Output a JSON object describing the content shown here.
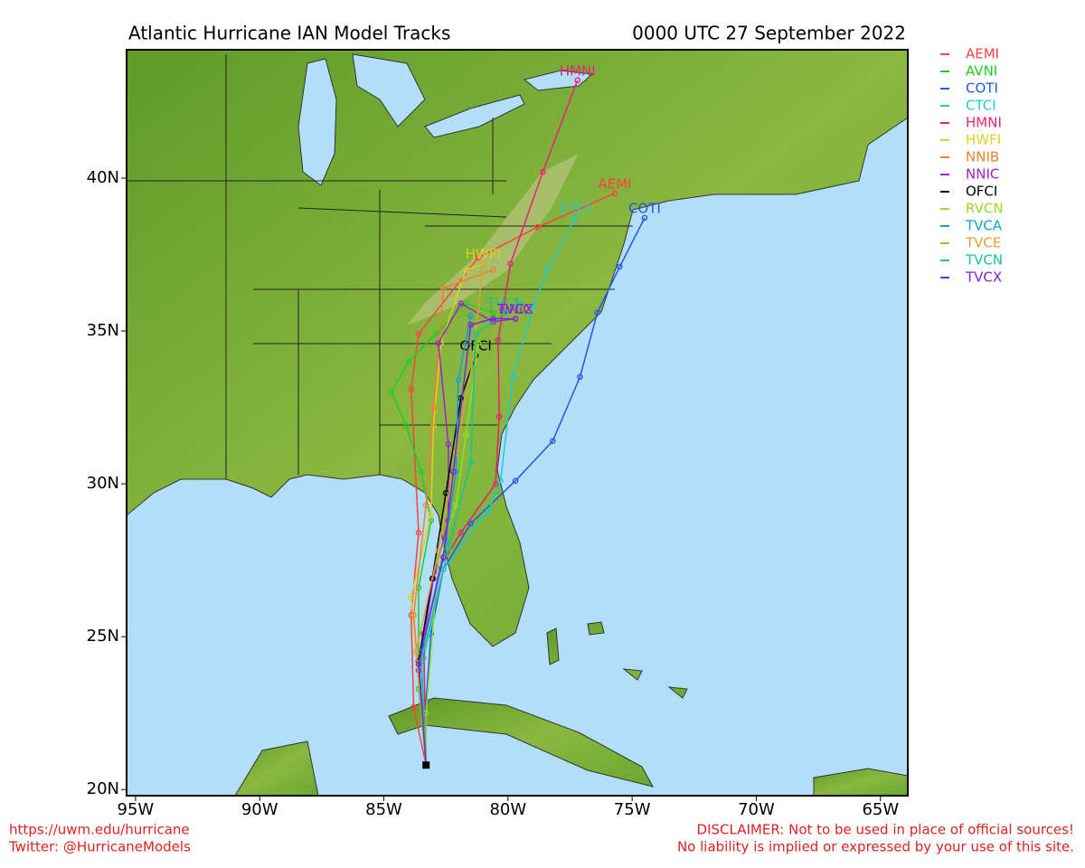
{
  "chart_data": {
    "type": "map",
    "title": "Atlantic Hurricane IAN Model Tracks",
    "subtitle": "0000 UTC 27 September 2022",
    "xlim": [
      -95.36,
      -63.9
    ],
    "ylim": [
      19.8,
      44.2
    ],
    "xticks": [
      {
        "value": -95,
        "label": "95W"
      },
      {
        "value": -90,
        "label": "90W"
      },
      {
        "value": -85,
        "label": "85W"
      },
      {
        "value": -80,
        "label": "80W"
      },
      {
        "value": -75,
        "label": "75W"
      },
      {
        "value": -70,
        "label": "70W"
      },
      {
        "value": -65,
        "label": "65W"
      }
    ],
    "yticks": [
      {
        "value": 20,
        "label": "20N"
      },
      {
        "value": 25,
        "label": "25N"
      },
      {
        "value": 30,
        "label": "30N"
      },
      {
        "value": 35,
        "label": "35N"
      },
      {
        "value": 40,
        "label": "40N"
      }
    ],
    "start": {
      "x": -83.3,
      "y": 20.8
    },
    "series": [
      {
        "name": "AEMI",
        "color": "#ff4040",
        "labeled": true,
        "x": [
          -83.3,
          -83.8,
          -83.9,
          -83.6,
          -83.9,
          -83.6,
          -81.2,
          -78.8,
          -75.7
        ],
        "y": [
          20.8,
          22.7,
          25.7,
          28.4,
          33.1,
          34.9,
          37.4,
          38.4,
          39.5
        ]
      },
      {
        "name": "AVNI",
        "color": "#22cc22",
        "labeled": false,
        "x": [
          -83.3,
          -83.6,
          -83.6,
          -83.1,
          -83.5,
          -84.1,
          -84.7,
          -84.0,
          -82.9,
          -81.7,
          -80.6
        ],
        "y": [
          20.8,
          23.3,
          26.6,
          28.8,
          30.4,
          31.9,
          33.0,
          34.0,
          34.9,
          35.9,
          35.6
        ]
      },
      {
        "name": "COTI",
        "color": "#2255ee",
        "labeled": true,
        "x": [
          -83.3,
          -83.3,
          -83.1,
          -82.6,
          -81.5,
          -79.7,
          -78.2,
          -77.1,
          -76.4,
          -75.5,
          -74.5
        ],
        "y": [
          20.8,
          22.9,
          25.1,
          27.2,
          28.7,
          30.1,
          31.4,
          33.5,
          35.6,
          37.1,
          38.7
        ]
      },
      {
        "name": "CTCI",
        "color": "#20c8d0",
        "labeled": true,
        "x": [
          -83.3,
          -83.4,
          -82.6,
          -80.8,
          -80.3,
          -79.8,
          -79.0,
          -78.4,
          -77.3
        ],
        "y": [
          20.8,
          24.3,
          27.2,
          29.1,
          30.1,
          33.5,
          35.8,
          37.0,
          38.7
        ]
      },
      {
        "name": "HMNI",
        "color": "#e8207a",
        "labeled": true,
        "x": [
          -83.3,
          -83.4,
          -83.05,
          -81.9,
          -80.5,
          -80.35,
          -80.4,
          -79.9,
          -78.6,
          -77.2
        ],
        "y": [
          20.8,
          25.1,
          26.9,
          28.4,
          30.0,
          32.2,
          34.7,
          37.2,
          40.2,
          43.2
        ]
      },
      {
        "name": "HWFI",
        "color": "#e0d020",
        "labeled": true,
        "x": [
          -83.3,
          -83.9,
          -83.1,
          -83.0,
          -82.7,
          -81.7,
          -81.0
        ],
        "y": [
          20.8,
          26.3,
          29.0,
          31.9,
          34.6,
          37.0,
          37.2
        ]
      },
      {
        "name": "NNIB",
        "color": "#f08030",
        "labeled": false,
        "x": [
          -83.3,
          -83.8,
          -83.3,
          -83.0,
          -82.6,
          -80.6
        ],
        "y": [
          20.8,
          25.7,
          29.3,
          32.5,
          36.4,
          37.0
        ]
      },
      {
        "name": "NNIC",
        "color": "#a020d0",
        "labeled": true,
        "x": [
          -83.3,
          -83.6,
          -83.0,
          -82.4,
          -82.4,
          -82.8,
          -81.9,
          -80.6,
          -79.7
        ],
        "y": [
          20.8,
          23.9,
          26.9,
          28.8,
          31.3,
          34.6,
          35.9,
          35.3,
          35.4
        ]
      },
      {
        "name": "OFCI",
        "color": "#000000",
        "labeled": true,
        "x": [
          -83.3,
          -83.6,
          -83.05,
          -82.5,
          -81.9,
          -81.3
        ],
        "y": [
          20.8,
          24.2,
          26.9,
          29.7,
          32.8,
          34.2
        ]
      },
      {
        "name": "RVCN",
        "color": "#90e020",
        "labeled": false,
        "x": [
          -83.3,
          -83.3,
          -82.8,
          -82.1,
          -81.7,
          -81.2
        ],
        "y": [
          20.8,
          22.5,
          27.5,
          29.3,
          31.6,
          34.6
        ]
      },
      {
        "name": "TVCA",
        "color": "#10a0e0",
        "labeled": false,
        "x": [
          -83.3,
          -83.5,
          -82.5,
          -82.1,
          -82.0,
          -81.5
        ],
        "y": [
          20.8,
          24.5,
          28.1,
          30.4,
          33.4,
          35.5
        ]
      },
      {
        "name": "TVCE",
        "color": "#e0a030",
        "labeled": false,
        "x": [
          -83.3,
          -83.7,
          -82.8,
          -82.1,
          -81.4,
          -81.0
        ],
        "y": [
          20.8,
          24.5,
          27.8,
          31.0,
          34.1,
          37.2
        ]
      },
      {
        "name": "TVCN",
        "color": "#10c890",
        "labeled": true,
        "x": [
          -83.3,
          -83.5,
          -82.4,
          -81.5,
          -81.3,
          -80.1
        ],
        "y": [
          20.8,
          24.2,
          27.9,
          30.7,
          34.9,
          35.6
        ]
      },
      {
        "name": "TVCX",
        "color": "#8020e0",
        "labeled": true,
        "x": [
          -83.3,
          -83.6,
          -82.6,
          -82.2,
          -81.5,
          -80.6,
          -79.7
        ],
        "y": [
          20.8,
          24.1,
          27.6,
          30.4,
          35.2,
          35.4,
          35.4
        ]
      }
    ]
  },
  "footer": {
    "left": [
      "https://uwm.edu/hurricane",
      "Twitter: @HurricaneModels"
    ],
    "right": [
      "DISCLAIMER: Not to be used in place of official sources!",
      "No liability is implied or expressed by your use of this site."
    ]
  }
}
